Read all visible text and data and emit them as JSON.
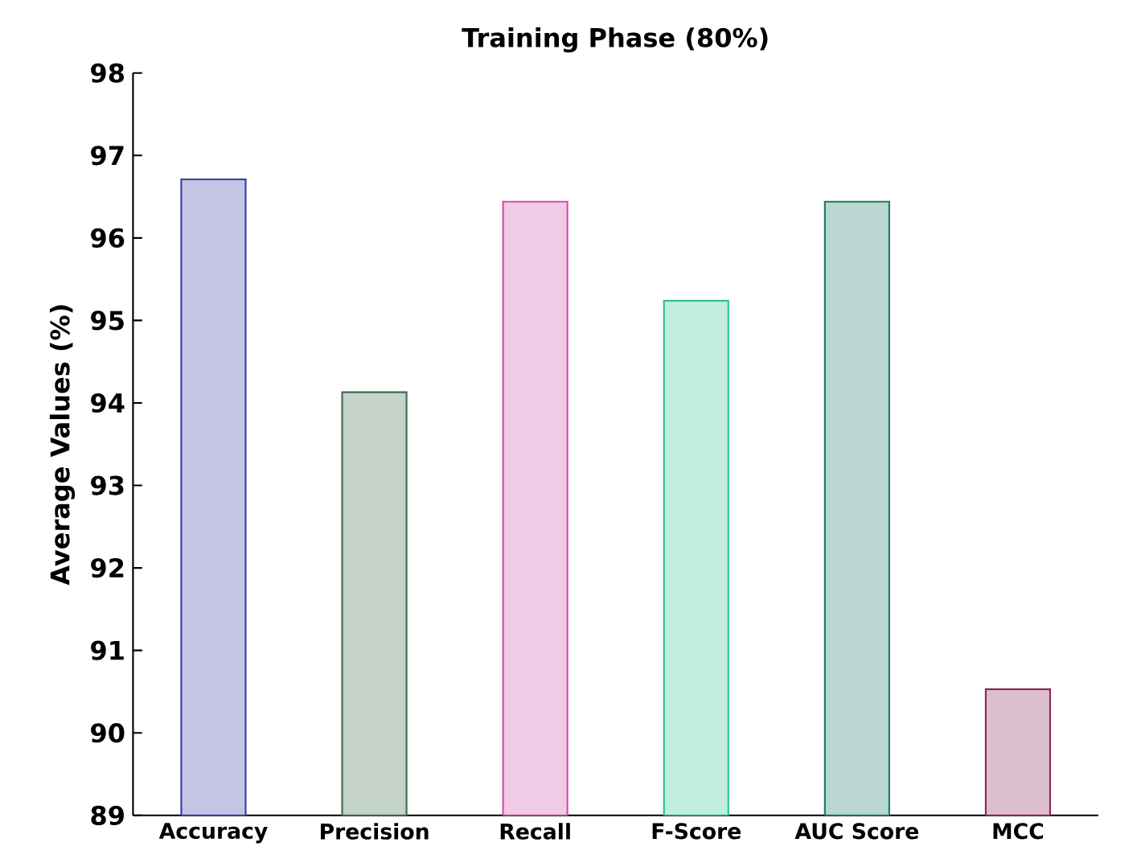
{
  "chart_data": {
    "type": "bar",
    "title": "Training Phase (80%)",
    "ylabel": "Average Values (%)",
    "categories": [
      "Accuracy",
      "Precision",
      "Recall",
      "F-Score",
      "AUC Score",
      "MCC"
    ],
    "values": [
      96.71,
      94.13,
      96.44,
      95.24,
      96.44,
      90.53
    ],
    "colors": [
      "#3a3aa8",
      "#3d6b4f",
      "#d14fa8",
      "#2ec28a",
      "#1a7a66",
      "#8a2a5a"
    ],
    "ylim": [
      89,
      98
    ],
    "yticks": [
      89,
      90,
      91,
      92,
      93,
      94,
      95,
      96,
      97,
      98
    ]
  }
}
